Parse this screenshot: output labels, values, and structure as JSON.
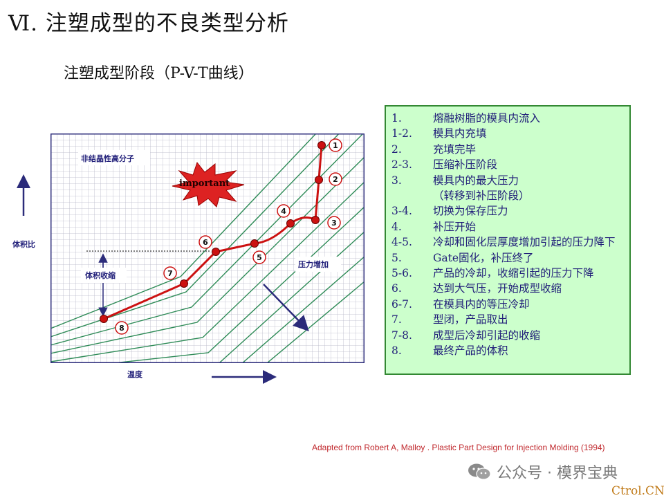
{
  "slide": {
    "title": "Ⅵ. 注塑成型的不良类型分析",
    "subtitle": "注塑成型阶段（P-V-T曲线）",
    "citation": "Adapted from Robert  A, Malloy . Plastic Part Design for Injection Molding (1994)",
    "watermark": "公众号 · 模界宝典",
    "site": "Ctrol.CN"
  },
  "diagram": {
    "y_axis_label": "体积比",
    "x_axis_label": "温度",
    "material_label": "非结晶性高分子",
    "important_label": "important",
    "shrink_label": "体积收缩",
    "pressure_label": "压力增加",
    "points": [
      {
        "id": "1",
        "label": "1"
      },
      {
        "id": "2",
        "label": "2"
      },
      {
        "id": "3",
        "label": "3"
      },
      {
        "id": "4",
        "label": "4"
      },
      {
        "id": "5",
        "label": "5"
      },
      {
        "id": "6",
        "label": "6"
      },
      {
        "id": "7",
        "label": "7"
      },
      {
        "id": "8",
        "label": "8"
      }
    ],
    "colors": {
      "curve": "#cc1111",
      "isobar": "#2e8b57",
      "grid": "#b8b8c8",
      "arrow": "#2b2b7a"
    }
  },
  "legend": {
    "items": [
      {
        "num": "1.",
        "text": "熔融树脂的模具内流入"
      },
      {
        "num": "1-2.",
        "text": "模具内充填"
      },
      {
        "num": "2.",
        "text": "充填完毕"
      },
      {
        "num": "2-3.",
        "text": "压缩补压阶段"
      },
      {
        "num": "3.",
        "text": "模具内的最大压力"
      },
      {
        "num": "",
        "text": "（转移到补压阶段）"
      },
      {
        "num": "3-4.",
        "text": "切换为保存压力"
      },
      {
        "num": "4.",
        "text": "补压开始"
      },
      {
        "num": "4-5.",
        "text": "冷却和固化层厚度增加引起的压力降下"
      },
      {
        "num": "5.",
        "text": "Gate固化，补压终了"
      },
      {
        "num": "5-6.",
        "text": "产品的冷却，收缩引起的压力下降"
      },
      {
        "num": "6.",
        "text": "达到大气压，开始成型收缩"
      },
      {
        "num": "6-7.",
        "text": "在模具内的等压冷却"
      },
      {
        "num": "7.",
        "text": "型闭，产品取出"
      },
      {
        "num": "7-8.",
        "text": "成型后冷却引起的收缩"
      },
      {
        "num": "8.",
        "text": "最终产品的体积"
      }
    ]
  }
}
